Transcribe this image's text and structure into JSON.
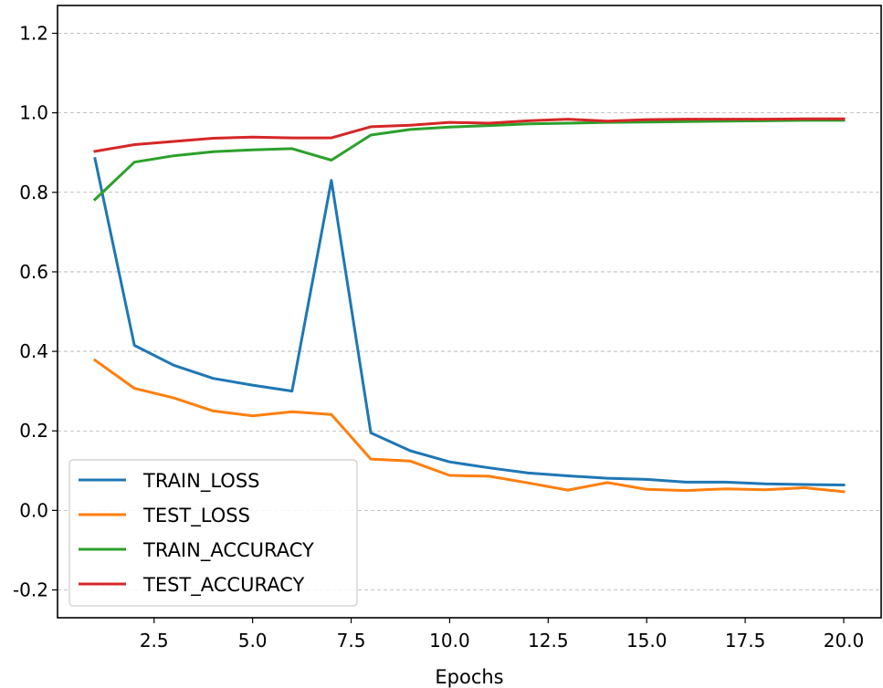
{
  "chart_data": {
    "type": "line",
    "title": "",
    "xlabel": "Epochs",
    "ylabel": "",
    "xlim": [
      0.05,
      20.95
    ],
    "ylim": [
      -0.27,
      1.27
    ],
    "xticks": [
      2.5,
      5.0,
      7.5,
      10.0,
      12.5,
      15.0,
      17.5,
      20.0
    ],
    "xtick_labels": [
      "2.5",
      "5.0",
      "7.5",
      "10.0",
      "12.5",
      "15.0",
      "17.5",
      "20.0"
    ],
    "yticks": [
      -0.2,
      0.0,
      0.2,
      0.4,
      0.6,
      0.8,
      1.0,
      1.2
    ],
    "ytick_labels": [
      "-0.2",
      "0.0",
      "0.2",
      "0.4",
      "0.6",
      "0.8",
      "1.0",
      "1.2"
    ],
    "grid": "y-dashed",
    "legend_position": "lower-left",
    "x": [
      1,
      2,
      3,
      4,
      5,
      6,
      7,
      8,
      9,
      10,
      11,
      12,
      13,
      14,
      15,
      16,
      17,
      18,
      19,
      20
    ],
    "series": [
      {
        "name": "TRAIN_LOSS",
        "color": "#1f77b4",
        "values": [
          0.885,
          0.415,
          0.365,
          0.332,
          0.315,
          0.3,
          0.83,
          0.195,
          0.15,
          0.122,
          0.107,
          0.094,
          0.087,
          0.081,
          0.078,
          0.071,
          0.071,
          0.067,
          0.065,
          0.064
        ]
      },
      {
        "name": "TEST_LOSS",
        "color": "#ff7f0e",
        "values": [
          0.378,
          0.307,
          0.283,
          0.25,
          0.238,
          0.248,
          0.241,
          0.129,
          0.124,
          0.088,
          0.086,
          0.069,
          0.051,
          0.07,
          0.053,
          0.05,
          0.054,
          0.052,
          0.057,
          0.047
        ]
      },
      {
        "name": "TRAIN_ACCURACY",
        "color": "#2ca02c",
        "values": [
          0.782,
          0.876,
          0.892,
          0.902,
          0.907,
          0.91,
          0.881,
          0.944,
          0.958,
          0.964,
          0.968,
          0.972,
          0.974,
          0.976,
          0.977,
          0.978,
          0.979,
          0.98,
          0.981,
          0.981
        ]
      },
      {
        "name": "TEST_ACCURACY",
        "color": "#d62728",
        "values": [
          0.903,
          0.92,
          0.928,
          0.936,
          0.939,
          0.937,
          0.937,
          0.965,
          0.969,
          0.976,
          0.974,
          0.98,
          0.984,
          0.979,
          0.983,
          0.984,
          0.984,
          0.984,
          0.985,
          0.985
        ]
      }
    ]
  }
}
